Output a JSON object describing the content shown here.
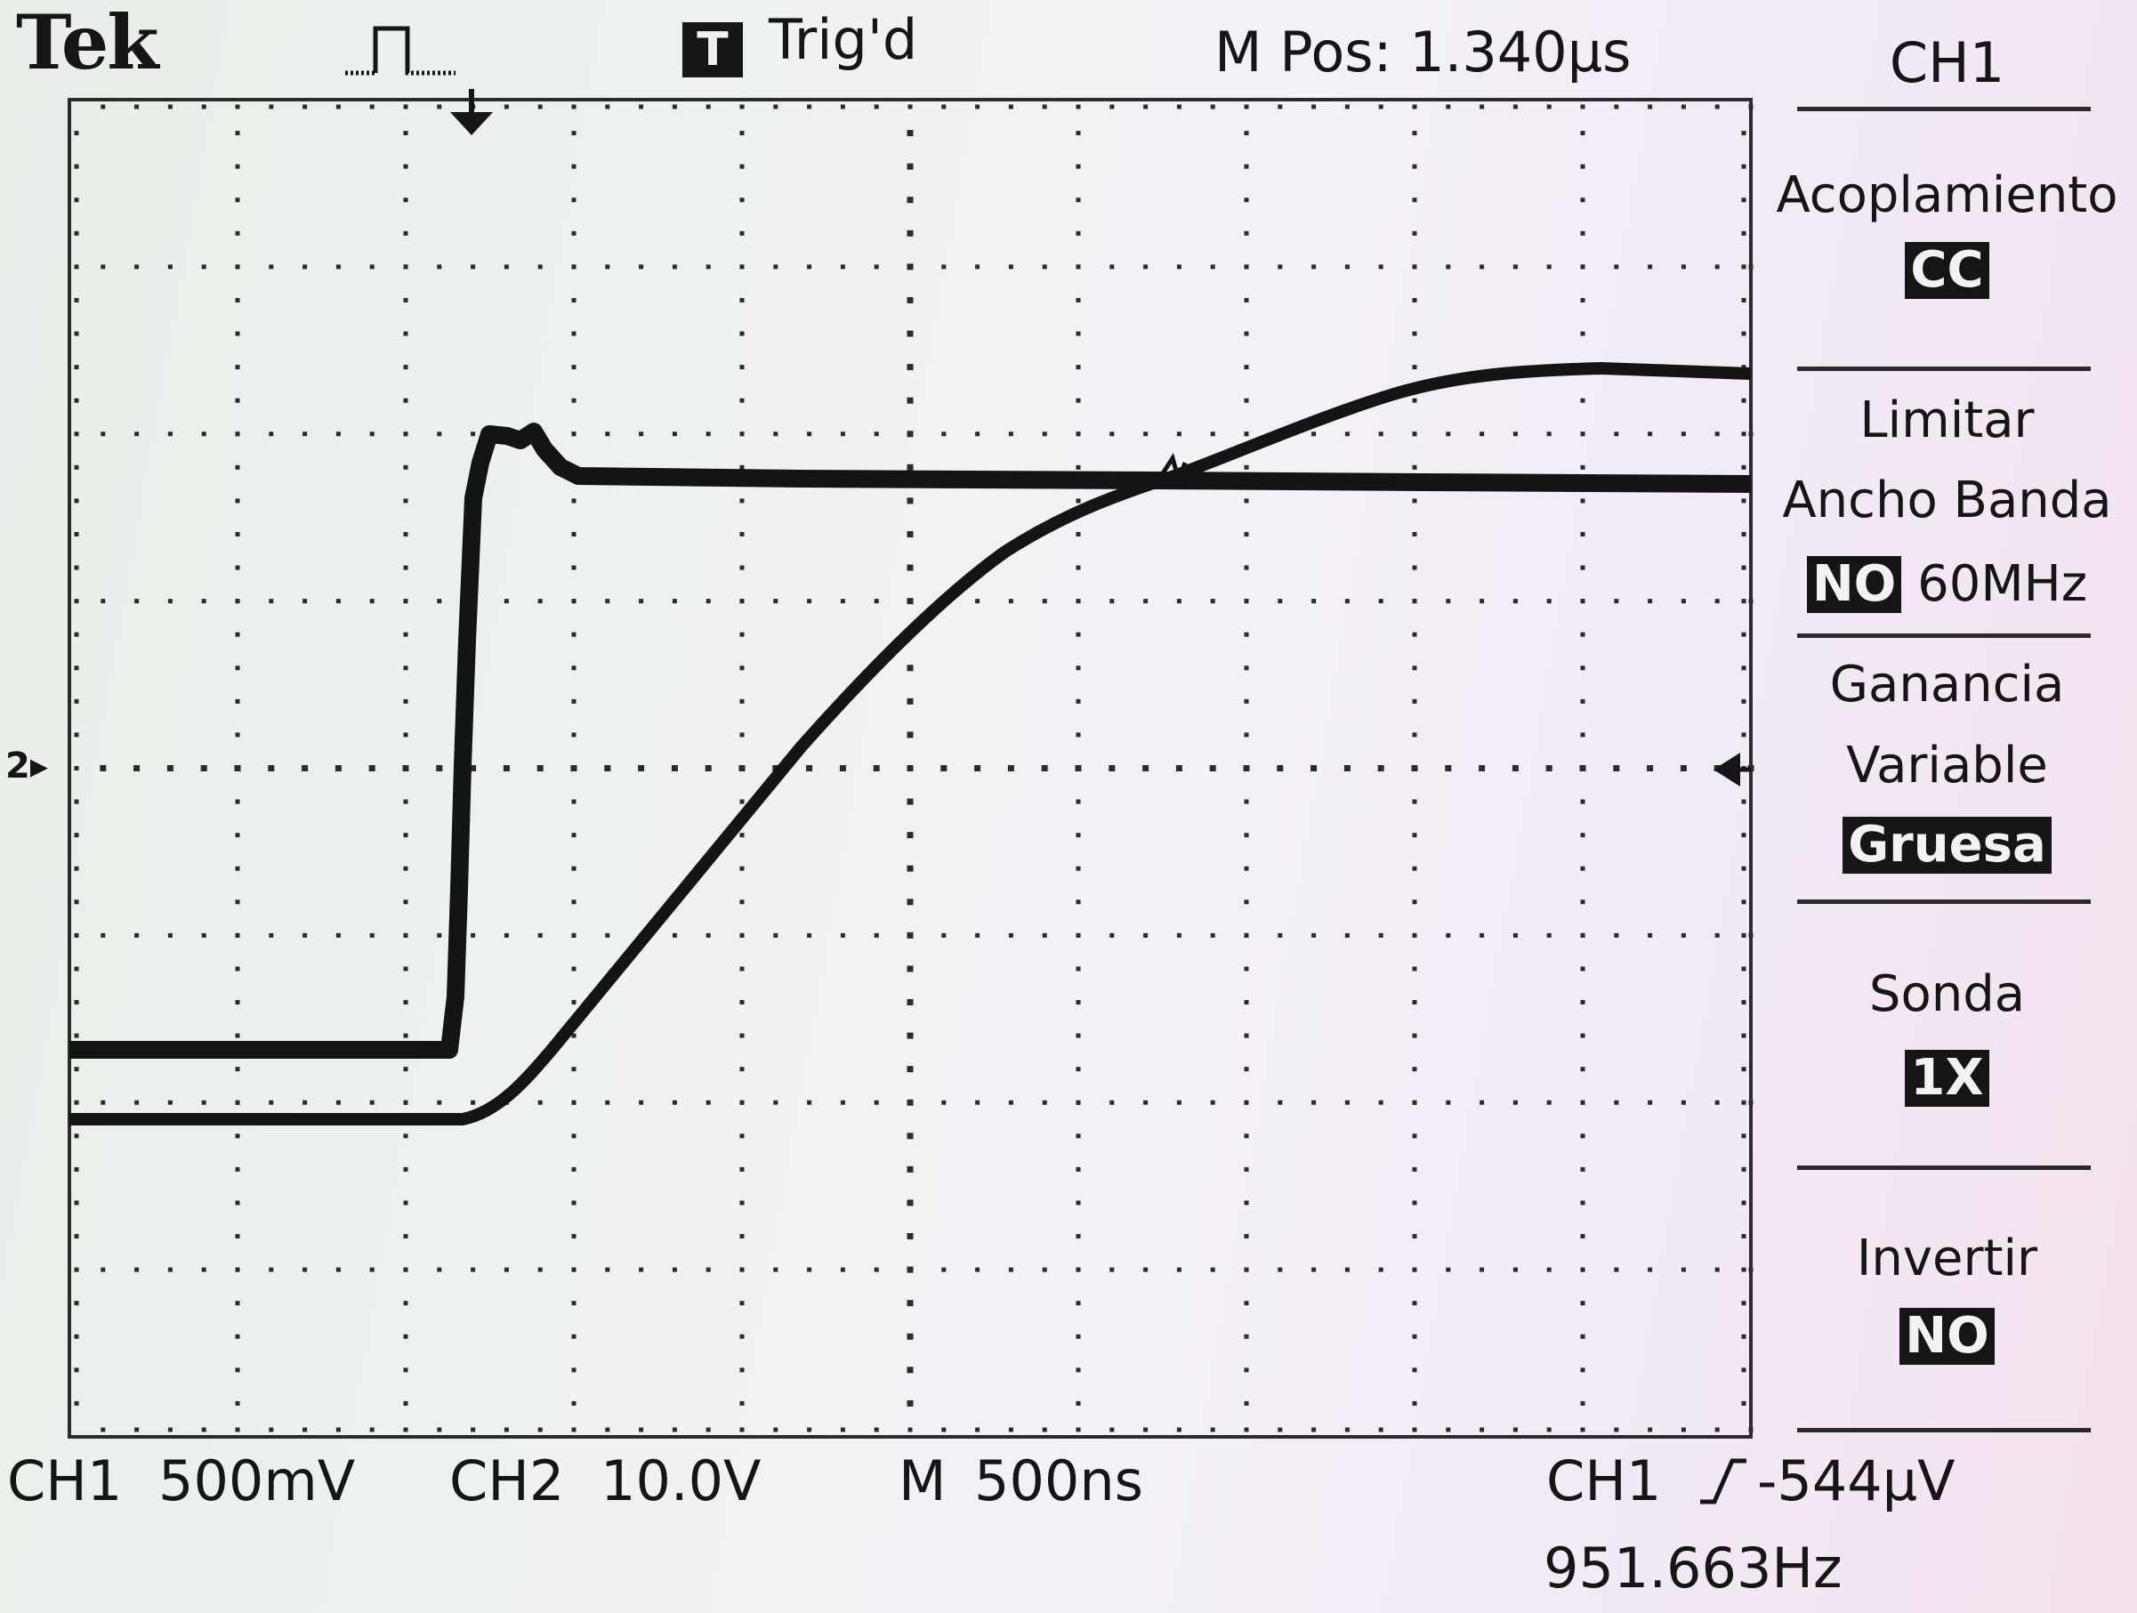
{
  "header": {
    "brand": "Tek",
    "trigger_state_icon": "T",
    "trigger_state": "Trig'd",
    "horizontal_position": "M Pos: 1.340µs"
  },
  "menu": {
    "title": "CH1",
    "items": [
      {
        "label": "Acoplamiento",
        "value": "CC"
      },
      {
        "label_line1": "Limitar",
        "label_line2": "Ancho Banda",
        "value": "NO",
        "value_suffix": "60MHz"
      },
      {
        "label_line1": "Ganancia",
        "label_line2": "Variable",
        "value": "Gruesa"
      },
      {
        "label": "Sonda",
        "value": "1X"
      },
      {
        "label": "Invertir",
        "value": "NO"
      }
    ]
  },
  "status": {
    "ch1_label": "CH1",
    "ch1_scale": "500mV",
    "ch2_label": "CH2",
    "ch2_scale": "10.0V",
    "timebase_label": "M",
    "timebase": "500ns",
    "trigger_source": "CH1",
    "trigger_level": "-544µV",
    "frequency": "951.663Hz"
  },
  "markers": {
    "ch2_ground": "2"
  },
  "icons": {
    "trigger_mode": "pulse-waveform-icon",
    "trigger_position": "down-arrow-icon",
    "trigger_level": "left-arrow-icon",
    "trigger_slope": "rising-edge-icon",
    "ch2_ground": "right-arrow-icon"
  },
  "colors": {
    "trace": "#141414",
    "graticule": "#2b2b2b",
    "screen": "#eef1f0"
  }
}
